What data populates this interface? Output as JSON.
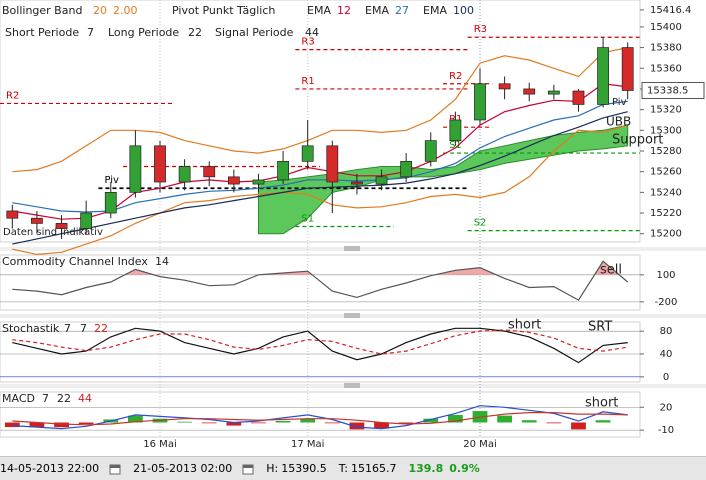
{
  "chart_data": [
    {
      "type": "candlestick",
      "open": [
        15222,
        15215,
        15210,
        15205,
        15220,
        15240,
        15285,
        15250,
        15265,
        15255,
        15248,
        15252,
        15270,
        15285,
        15250,
        15248,
        15255,
        15270,
        15290,
        15310,
        15345,
        15340,
        15335,
        15338,
        15325,
        15380
      ],
      "high": [
        15228,
        15222,
        15218,
        15232,
        15250,
        15300,
        15290,
        15272,
        15270,
        15262,
        15258,
        15280,
        15310,
        15290,
        15258,
        15262,
        15278,
        15298,
        15318,
        15360,
        15352,
        15346,
        15344,
        15340,
        15390,
        15385
      ],
      "low": [
        15205,
        15200,
        15195,
        15200,
        15215,
        15235,
        15240,
        15242,
        15246,
        15240,
        15240,
        15248,
        15262,
        15220,
        15238,
        15242,
        15250,
        15265,
        15285,
        15305,
        15330,
        15328,
        15330,
        15318,
        15322,
        15330
      ],
      "close": [
        15215,
        15210,
        15205,
        15220,
        15240,
        15285,
        15250,
        15265,
        15255,
        15248,
        15252,
        15270,
        15285,
        15250,
        15248,
        15255,
        15270,
        15290,
        15310,
        15345,
        15340,
        15335,
        15338,
        15325,
        15380,
        15338.5
      ],
      "bollinger": {
        "name": "Bollinger Band",
        "params": [
          20,
          "2.00"
        ],
        "color": "#e07b20",
        "upper": [
          15260,
          15262,
          15270,
          15285,
          15300,
          15300,
          15298,
          15290,
          15285,
          15280,
          15278,
          15282,
          15290,
          15300,
          15300,
          15298,
          15300,
          15310,
          15330,
          15365,
          15372,
          15368,
          15360,
          15352,
          15375,
          15380
        ],
        "lower": [
          15185,
          15180,
          15182,
          15190,
          15198,
          15210,
          15220,
          15230,
          15232,
          15236,
          15238,
          15240,
          15238,
          15228,
          15225,
          15226,
          15230,
          15236,
          15238,
          15235,
          15240,
          15255,
          15280,
          15300,
          15298,
          15305
        ]
      },
      "pivot_title": "Pivot Punkt Täglich",
      "series": [
        {
          "name": "EMA",
          "param": 12,
          "color": "#cc0033",
          "values": [
            15222,
            15218,
            15214,
            15215,
            15222,
            15240,
            15244,
            15250,
            15252,
            15250,
            15251,
            15256,
            15264,
            15260,
            15256,
            15256,
            15260,
            15270,
            15283,
            15305,
            15318,
            15324,
            15329,
            15328,
            15345,
            15342
          ]
        },
        {
          "name": "EMA",
          "param": 27,
          "color": "#2a6fb5",
          "values": [
            15230,
            15226,
            15222,
            15221,
            15222,
            15230,
            15234,
            15238,
            15241,
            15242,
            15244,
            15247,
            15252,
            15252,
            15251,
            15252,
            15254,
            15260,
            15268,
            15283,
            15294,
            15302,
            15310,
            15314,
            15325,
            15328
          ]
        },
        {
          "name": "EMA",
          "param": 100,
          "color": "#1a2a5a",
          "values": [
            15190,
            15195,
            15200,
            15205,
            15210,
            15215,
            15220,
            15225,
            15228,
            15232,
            15236,
            15240,
            15244,
            15245,
            15246,
            15247,
            15249,
            15253,
            15258,
            15266,
            15275,
            15285,
            15295,
            15303,
            15312,
            15318
          ]
        }
      ],
      "settings": [
        {
          "name": "Short Periode",
          "param": 7
        },
        {
          "name": "Long Periode",
          "param": 22
        },
        {
          "name": "Signal Periode",
          "param": 44
        }
      ],
      "support_area": {
        "color": "#5cc85c",
        "top": [
          null,
          null,
          null,
          null,
          null,
          null,
          null,
          null,
          null,
          null,
          15250,
          15252,
          15255,
          15258,
          15262,
          15265,
          15265,
          15262,
          15265,
          15280,
          15285,
          15290,
          15295,
          15298,
          15300,
          15305
        ],
        "bottom": [
          null,
          null,
          null,
          null,
          null,
          null,
          null,
          null,
          null,
          null,
          15200,
          15200,
          15215,
          15240,
          15245,
          15252,
          15255,
          15255,
          15258,
          15262,
          15268,
          15272,
          15276,
          15280,
          15282,
          15285
        ]
      },
      "pivots": [
        {
          "label": "R2",
          "value": 15326,
          "from": 0,
          "to": 6
        },
        {
          "label": "R1",
          "value": 15265,
          "from": 5,
          "to": 12
        },
        {
          "label": "Piv",
          "value": 15244,
          "from": 4,
          "to": 18
        },
        {
          "label": "R3",
          "value": 15378,
          "from": 12,
          "to": 18
        },
        {
          "label": "R1",
          "value": 15340,
          "from": 12,
          "to": 18
        },
        {
          "label": "S1",
          "value": 15207,
          "from": 12,
          "to": 15
        },
        {
          "label": "R3",
          "value": 15390,
          "from": 19,
          "to": 25
        },
        {
          "label": "R2",
          "value": 15345,
          "from": 18,
          "to": 19
        },
        {
          "label": "R1",
          "value": 15303,
          "from": 18,
          "to": 19
        },
        {
          "label": "S1",
          "value": 15278,
          "from": 18,
          "to": 25
        },
        {
          "label": "S2",
          "value": 15203,
          "from": 19,
          "to": 25
        }
      ],
      "last": 15338.5,
      "annotations": [
        "Daten sind indikativ",
        "Piv",
        "UBB",
        "Support"
      ],
      "ylim": [
        15192,
        15426
      ],
      "yticks": [
        15200,
        15220,
        15240,
        15260,
        15280,
        15300,
        15320,
        15340,
        15360,
        15380,
        15400,
        15416.4
      ]
    },
    {
      "type": "line",
      "name": "Commodity Channel Index",
      "params": [
        14
      ],
      "color": "#555555",
      "values": [
        -60,
        -80,
        -120,
        -40,
        20,
        160,
        80,
        40,
        -20,
        -10,
        100,
        120,
        140,
        -80,
        -150,
        -60,
        10,
        90,
        150,
        180,
        60,
        -40,
        -30,
        -180,
        250,
        20
      ],
      "ylim": [
        -290,
        320
      ],
      "yticks": [
        -200,
        100
      ],
      "annotations": [
        "sell"
      ]
    },
    {
      "type": "line",
      "name": "Stochastik",
      "params": [
        7,
        7,
        22
      ],
      "series": [
        {
          "color": "#111111",
          "values": [
            60,
            50,
            40,
            45,
            70,
            85,
            80,
            60,
            50,
            40,
            50,
            70,
            80,
            45,
            30,
            40,
            60,
            75,
            85,
            85,
            80,
            70,
            50,
            25,
            55,
            60
          ]
        },
        {
          "color": "#d62020",
          "values": [
            65,
            60,
            52,
            46,
            52,
            65,
            75,
            75,
            65,
            52,
            48,
            55,
            65,
            62,
            50,
            40,
            45,
            58,
            72,
            80,
            82,
            78,
            68,
            50,
            45,
            52
          ]
        }
      ],
      "ylim": [
        -9,
        96
      ],
      "yticks": [
        0,
        40,
        80
      ],
      "annotations": [
        "short",
        "SRT"
      ]
    },
    {
      "type": "line",
      "name": "MACD",
      "params": [
        7,
        22,
        44
      ],
      "series": [
        {
          "color": "#2a4fd0",
          "values": [
            -4,
            -6,
            -8,
            -5,
            2,
            10,
            8,
            6,
            4,
            0,
            2,
            6,
            10,
            4,
            -6,
            -8,
            -4,
            4,
            12,
            22,
            20,
            16,
            12,
            2,
            14,
            10
          ]
        },
        {
          "color": "#c0392b",
          "values": [
            2,
            0,
            -2,
            -3,
            -2,
            1,
            3,
            5,
            5,
            4,
            3,
            4,
            5,
            5,
            3,
            0,
            -2,
            -1,
            2,
            7,
            11,
            13,
            13,
            11,
            11,
            10
          ]
        }
      ],
      "histogram": [
        -6,
        -6,
        -6,
        -2,
        4,
        9,
        5,
        1,
        -1,
        -4,
        -1,
        2,
        5,
        -1,
        -9,
        -8,
        -2,
        5,
        10,
        15,
        9,
        3,
        -1,
        -9,
        3,
        0
      ],
      "categories": [
        null,
        null,
        null,
        null,
        null,
        null,
        "16 Mai",
        null,
        null,
        null,
        null,
        null,
        "17 Mai",
        null,
        null,
        null,
        null,
        null,
        null,
        "20 Mai",
        null,
        null,
        null,
        null,
        null,
        null
      ],
      "ylim": [
        -19,
        40
      ],
      "yticks": [
        -10,
        20
      ],
      "annotations": [
        "short"
      ]
    }
  ],
  "footer": {
    "start": "14-05-2013 22:00",
    "end": "21-05-2013 02:00",
    "high_label": "H:",
    "high": 15390.5,
    "low_label": "T:",
    "low": 15165.7,
    "change": 139.8,
    "change_pct": "0.9%"
  }
}
